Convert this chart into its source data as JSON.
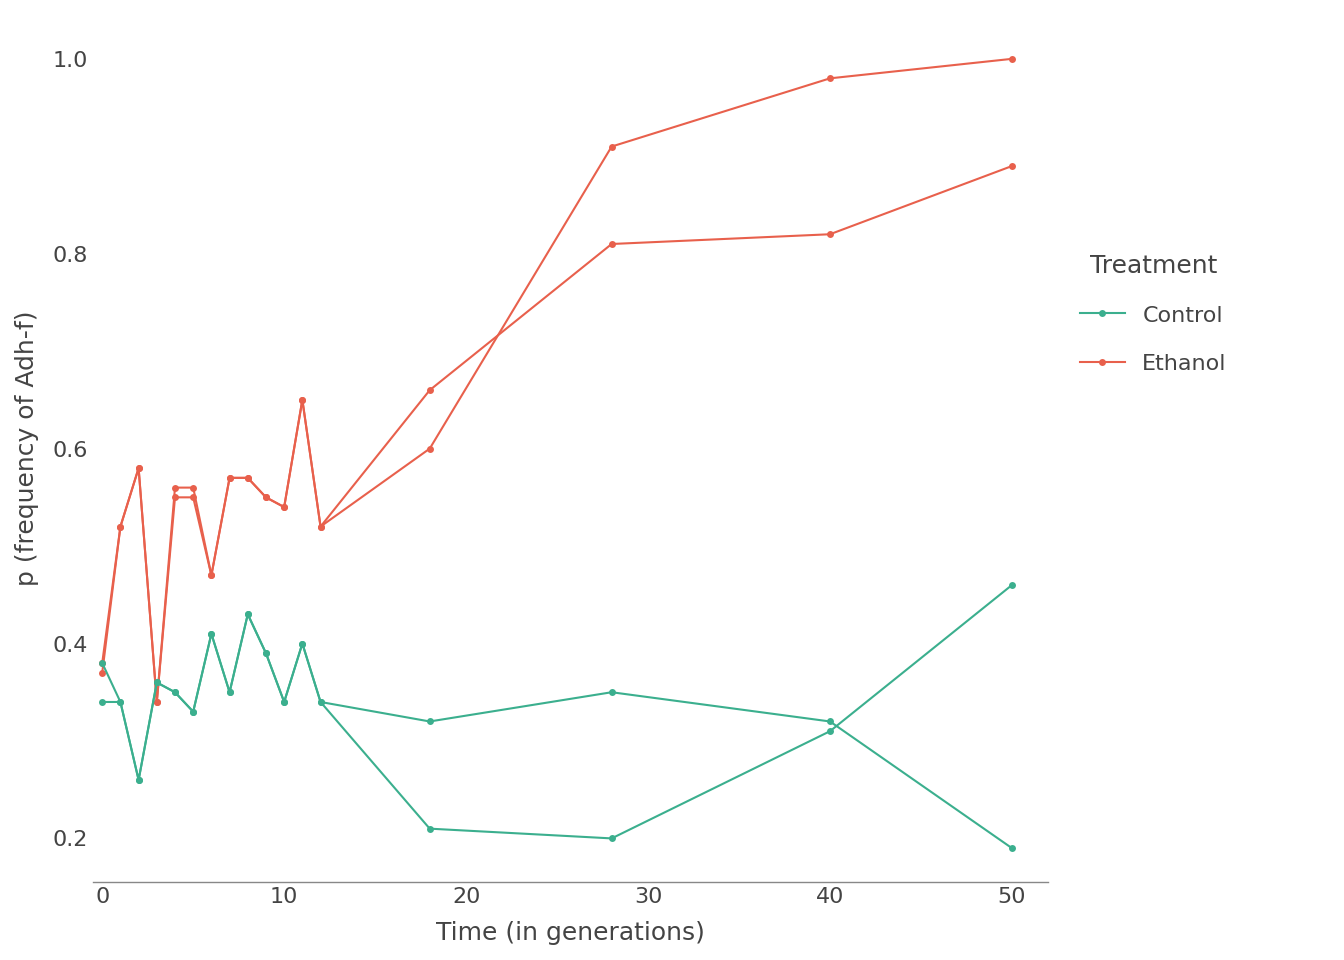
{
  "ethanol1_x": [
    0,
    1,
    2,
    3,
    4,
    5,
    6,
    7,
    8,
    9,
    10,
    11,
    12,
    18,
    28,
    40,
    50
  ],
  "ethanol1_y": [
    0.37,
    0.52,
    0.58,
    0.34,
    0.55,
    0.55,
    0.47,
    0.57,
    0.57,
    0.55,
    0.54,
    0.65,
    0.52,
    0.6,
    0.91,
    0.98,
    1.0
  ],
  "ethanol2_x": [
    0,
    1,
    2,
    3,
    4,
    5,
    6,
    7,
    8,
    9,
    10,
    11,
    12,
    18,
    28,
    40,
    50
  ],
  "ethanol2_y": [
    0.38,
    0.52,
    0.58,
    0.34,
    0.56,
    0.56,
    0.47,
    0.57,
    0.57,
    0.55,
    0.54,
    0.65,
    0.52,
    0.66,
    0.81,
    0.82,
    0.89
  ],
  "control1_x": [
    0,
    1,
    2,
    3,
    4,
    5,
    6,
    7,
    8,
    9,
    10,
    11,
    12,
    18,
    28,
    40,
    50
  ],
  "control1_y": [
    0.34,
    0.34,
    0.26,
    0.36,
    0.35,
    0.33,
    0.41,
    0.35,
    0.43,
    0.39,
    0.34,
    0.4,
    0.34,
    0.21,
    0.2,
    0.31,
    0.46
  ],
  "control2_x": [
    0,
    1,
    2,
    3,
    4,
    5,
    6,
    7,
    8,
    9,
    10,
    11,
    12,
    18,
    28,
    40,
    50
  ],
  "control2_y": [
    0.38,
    0.34,
    0.26,
    0.36,
    0.35,
    0.33,
    0.41,
    0.35,
    0.43,
    0.39,
    0.34,
    0.4,
    0.34,
    0.32,
    0.35,
    0.32,
    0.19
  ],
  "ethanol_color": "#E8604C",
  "control_color": "#3BAF8E",
  "xlabel": "Time (in generations)",
  "ylabel": "p (frequency of Adh-f)",
  "legend_title": "Treatment",
  "legend_labels": [
    "Control",
    "Ethanol"
  ],
  "xlim": [
    -0.5,
    52
  ],
  "ylim": [
    0.155,
    1.045
  ],
  "xticks": [
    0,
    10,
    20,
    30,
    40,
    50
  ],
  "yticks": [
    0.2,
    0.4,
    0.6,
    0.8,
    1.0
  ],
  "marker_size": 5,
  "line_width": 1.5,
  "background_color": "#ffffff"
}
